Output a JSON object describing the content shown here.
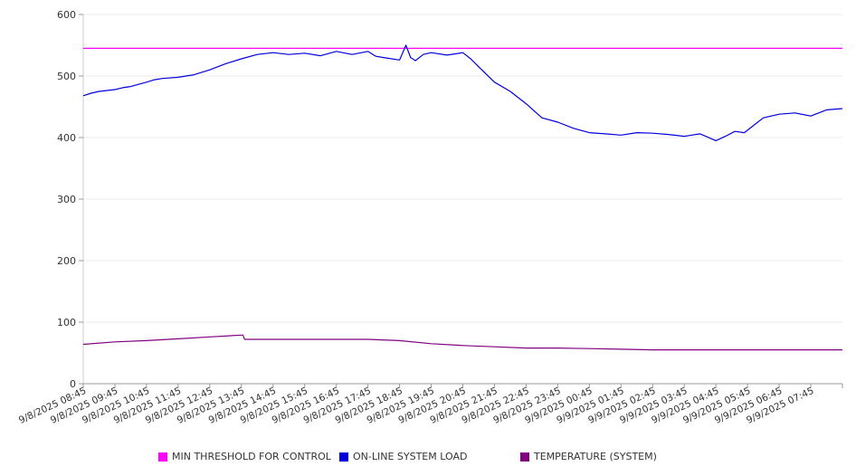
{
  "chart_data": {
    "type": "line",
    "ylim": [
      0,
      600
    ],
    "yticks": [
      0,
      100,
      200,
      300,
      400,
      500,
      600
    ],
    "grid": true,
    "legend_position": "bottom",
    "categories": [
      "9/8/2025 08:45",
      "9/8/2025 09:45",
      "9/8/2025 10:45",
      "9/8/2025 11:45",
      "9/8/2025 12:45",
      "9/8/2025 13:45",
      "9/8/2025 14:45",
      "9/8/2025 15:45",
      "9/8/2025 16:45",
      "9/8/2025 17:45",
      "9/8/2025 18:45",
      "9/8/2025 19:45",
      "9/8/2025 20:45",
      "9/8/2025 21:45",
      "9/8/2025 22:45",
      "9/8/2025 23:45",
      "9/9/2025 00:45",
      "9/9/2025 01:45",
      "9/9/2025 02:45",
      "9/9/2025 03:45",
      "9/9/2025 04:45",
      "9/9/2025 05:45",
      "9/9/2025 06:45",
      "9/9/2025 07:45"
    ],
    "series": [
      {
        "name": "MIN THRESHOLD FOR CONTROL",
        "color": "#ff00ff",
        "x": [
          0,
          24
        ],
        "values": [
          545,
          545
        ]
      },
      {
        "name": "ON-LINE SYSTEM LOAD",
        "color": "#0000dd",
        "x": [
          0,
          0.25,
          0.5,
          1,
          1.25,
          1.5,
          2,
          2.25,
          2.5,
          3,
          3.5,
          4,
          4.5,
          5,
          5.5,
          6,
          6.5,
          7,
          7.5,
          8,
          8.5,
          9,
          9.25,
          9.5,
          10,
          10.2,
          10.35,
          10.5,
          10.75,
          11,
          11.5,
          12,
          12.25,
          12.5,
          13,
          13.5,
          14,
          14.5,
          15,
          15.5,
          16,
          16.5,
          17,
          17.5,
          18,
          18.5,
          19,
          19.5,
          20,
          20.3,
          20.6,
          20.9,
          21.2,
          21.5,
          22,
          22.5,
          23,
          23.5,
          24
        ],
        "values": [
          468,
          472,
          475,
          478,
          481,
          483,
          490,
          494,
          496,
          498,
          502,
          510,
          520,
          528,
          535,
          538,
          535,
          537,
          533,
          540,
          535,
          540,
          532,
          530,
          526,
          550,
          530,
          525,
          535,
          538,
          534,
          538,
          528,
          515,
          490,
          475,
          455,
          432,
          425,
          415,
          408,
          406,
          404,
          408,
          407,
          405,
          402,
          406,
          395,
          402,
          410,
          408,
          420,
          432,
          438,
          440,
          435,
          445,
          447
        ]
      },
      {
        "name": "TEMPERATURE (SYSTEM)",
        "color": "#800080",
        "x": [
          0,
          1,
          2,
          3,
          4,
          5,
          5.05,
          5.1,
          6,
          7,
          8,
          9,
          10,
          11,
          12,
          13,
          14,
          15,
          16,
          17,
          18,
          19,
          20,
          21,
          22,
          23,
          24
        ],
        "values": [
          64,
          68,
          70,
          73,
          76,
          79,
          79,
          72,
          72,
          72,
          72,
          72,
          70,
          65,
          62,
          60,
          58,
          58,
          57,
          56,
          55,
          55,
          55,
          55,
          55,
          55,
          55
        ]
      }
    ]
  }
}
